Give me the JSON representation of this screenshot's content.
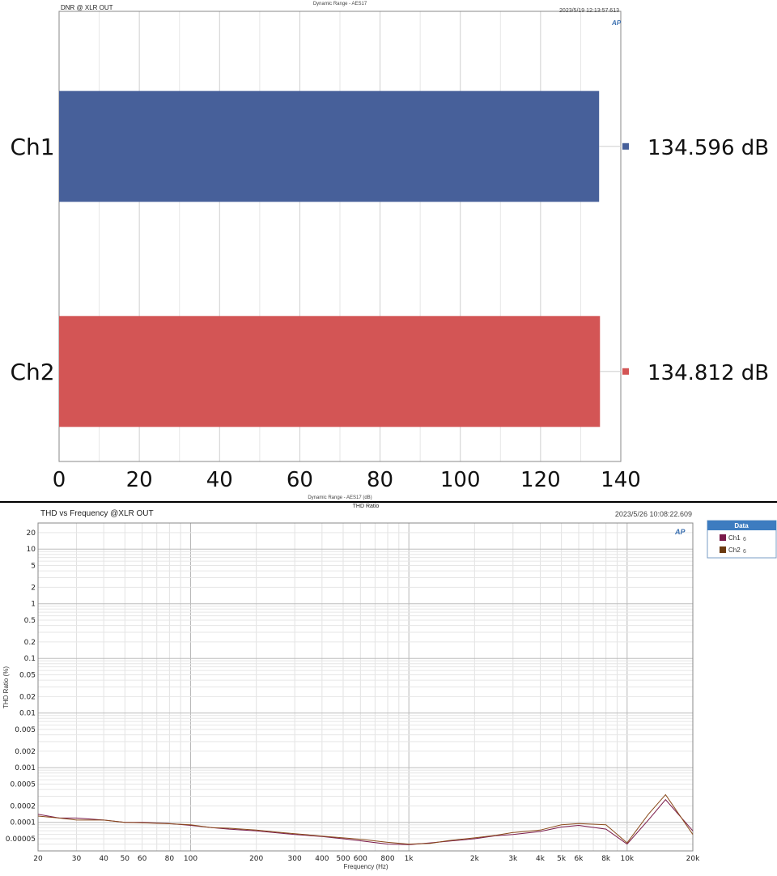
{
  "chart_data": [
    {
      "type": "bar",
      "orientation": "horizontal",
      "title": "DNR @ XLR OUT",
      "subtitle": "Dynamic Range - AES17",
      "timestamp": "2023/5/19 12:13:57.613",
      "logo": "AP",
      "xlabel": "Dynamic Range - AES17 (dB)",
      "xlim": [
        0,
        140
      ],
      "xticks": [
        "0",
        "20",
        "40",
        "60",
        "80",
        "100",
        "120",
        "140"
      ],
      "grid": true,
      "categories": [
        "Ch1",
        "Ch2"
      ],
      "values": [
        134.596,
        134.812
      ],
      "value_labels": [
        "134.596 dB",
        "134.812 dB"
      ],
      "colors": [
        "#47609a",
        "#d35555"
      ]
    },
    {
      "type": "line",
      "title": "THD vs Frequency @XLR OUT",
      "subtitle": "THD Ratio",
      "timestamp": "2023/5/26 10:08:22.609",
      "logo": "AP",
      "xlabel": "Frequency (Hz)",
      "ylabel": "THD Ratio (%)",
      "xscale": "log",
      "yscale": "log",
      "xlim": [
        20,
        20000
      ],
      "ylim": [
        3e-05,
        30
      ],
      "xticks": [
        "20",
        "30",
        "40",
        "50",
        "60",
        "80",
        "100",
        "200",
        "300",
        "400",
        "500",
        "600",
        "800",
        "1k",
        "2k",
        "3k",
        "4k",
        "5k",
        "6k",
        "8k",
        "10k",
        "20k"
      ],
      "yticks": [
        "20",
        "10",
        "5",
        "2",
        "1",
        "0.5",
        "0.2",
        "0.1",
        "0.05",
        "0.02",
        "0.01",
        "0.005",
        "0.002",
        "0.001",
        "0.0005",
        "0.0002",
        "0.0001",
        "0.00005"
      ],
      "grid": true,
      "legend": {
        "title": "Data",
        "placement": "right",
        "items": [
          {
            "label": "Ch1",
            "suffix": "6",
            "color": "#7a1a4a"
          },
          {
            "label": "Ch2",
            "suffix": "6",
            "color": "#6b3a10"
          }
        ]
      },
      "x": [
        20,
        25,
        30,
        40,
        50,
        60,
        80,
        100,
        125,
        150,
        200,
        250,
        300,
        400,
        500,
        600,
        800,
        1000,
        1250,
        1500,
        2000,
        2500,
        3000,
        4000,
        5000,
        6000,
        8000,
        10000,
        12500,
        15000,
        20000
      ],
      "series": [
        {
          "name": "Ch1",
          "color": "#7a1a4a",
          "values": [
            0.00014,
            0.00012,
            0.00012,
            0.00011,
            0.0001,
            0.0001,
            9.5e-05,
            8.8e-05,
            8e-05,
            7.5e-05,
            7e-05,
            6.4e-05,
            6e-05,
            5.5e-05,
            5e-05,
            4.6e-05,
            4e-05,
            3.9e-05,
            4.2e-05,
            4.5e-05,
            5e-05,
            5.7e-05,
            6e-05,
            6.8e-05,
            8.2e-05,
            8.8e-05,
            7.5e-05,
            4e-05,
            0.00011,
            0.00026,
            7e-05
          ]
        },
        {
          "name": "Ch2",
          "color": "#8a4a1a",
          "values": [
            0.00013,
            0.00012,
            0.00011,
            0.00011,
            0.0001,
            9.8e-05,
            9.4e-05,
            9e-05,
            8e-05,
            7.8e-05,
            7.2e-05,
            6.6e-05,
            6.2e-05,
            5.6e-05,
            5.2e-05,
            4.9e-05,
            4.3e-05,
            4e-05,
            4.1e-05,
            4.6e-05,
            5.2e-05,
            5.8e-05,
            6.5e-05,
            7.2e-05,
            9e-05,
            9.5e-05,
            9e-05,
            4.2e-05,
            0.00014,
            0.00032,
            6e-05
          ]
        }
      ]
    }
  ]
}
